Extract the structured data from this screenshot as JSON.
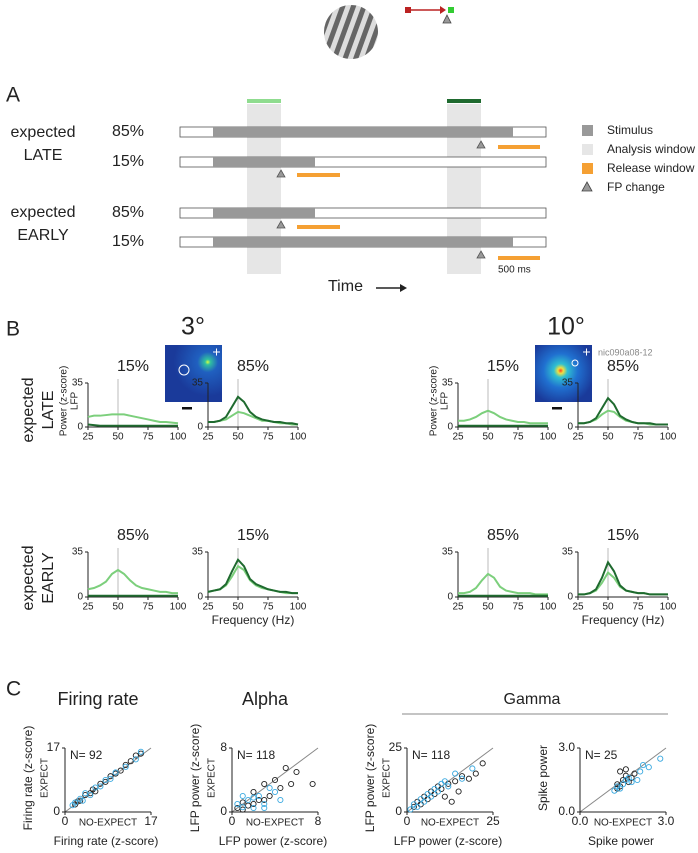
{
  "panel_a": {
    "label": "A",
    "conditions": [
      {
        "group": [
          "expected",
          "LATE"
        ],
        "rows": [
          "85%",
          "15%"
        ]
      },
      {
        "group": [
          "expected",
          "EARLY"
        ],
        "rows": [
          "85%",
          "15%"
        ]
      }
    ],
    "legend": [
      "Stimulus",
      "Analysis window",
      "Release window",
      "FP change"
    ],
    "scale": "500 ms",
    "time": "Time"
  },
  "panel_b": {
    "label": "B",
    "sizes": [
      "3°",
      "10°"
    ],
    "recording": "nic090a08-12",
    "rows": [
      [
        "expected",
        "LATE"
      ],
      [
        "expected",
        "EARLY"
      ]
    ]
  },
  "panel_c": {
    "label": "C",
    "group_title": "Gamma"
  },
  "chart_data": [
    {
      "type": "line",
      "title": "15%",
      "ylabel": "Power (z-score)",
      "ylabel2": "LFP",
      "x": [
        25,
        30,
        35,
        40,
        45,
        50,
        55,
        60,
        65,
        70,
        75,
        80,
        85,
        90,
        95,
        100
      ],
      "xlim": [
        25,
        100
      ],
      "xticks": [
        25,
        50,
        75,
        100
      ],
      "ylim": [
        0,
        35
      ],
      "yticks": [
        0,
        35
      ],
      "vline": 50,
      "series": [
        {
          "color": "#7ccf7c",
          "values": [
            8,
            9,
            9,
            9.5,
            10,
            10,
            10,
            9,
            8,
            7,
            6,
            5,
            4,
            4,
            3.5,
            3
          ]
        },
        {
          "color": "#1f6a2f",
          "values": [
            2,
            1.5,
            1,
            1,
            1,
            1,
            1,
            1,
            1,
            1,
            1,
            1,
            1,
            1,
            1,
            1
          ]
        }
      ]
    },
    {
      "type": "line",
      "title": "85%",
      "x": [
        25,
        30,
        35,
        40,
        45,
        50,
        55,
        60,
        65,
        70,
        75,
        80,
        85,
        90,
        95,
        100
      ],
      "xlim": [
        25,
        100
      ],
      "xticks": [
        25,
        50,
        75,
        100
      ],
      "ylim": [
        0,
        35
      ],
      "yticks": [
        0,
        35
      ],
      "vline": 50,
      "series": [
        {
          "color": "#7ccf7c",
          "values": [
            4,
            4,
            5,
            6,
            9,
            12,
            11,
            9,
            7,
            5,
            5,
            4,
            3,
            3,
            2,
            2
          ]
        },
        {
          "color": "#1f6a2f",
          "values": [
            4,
            4,
            5,
            8,
            16,
            24,
            20,
            12,
            8,
            6,
            5,
            4,
            4,
            3,
            3,
            2
          ]
        }
      ]
    },
    {
      "type": "line",
      "title": "85%",
      "x": [
        25,
        30,
        35,
        40,
        45,
        50,
        55,
        60,
        65,
        70,
        75,
        80,
        85,
        90,
        95,
        100
      ],
      "xlim": [
        25,
        100
      ],
      "xticks": [
        25,
        50,
        75,
        100
      ],
      "ylim": [
        0,
        35
      ],
      "yticks": [
        0,
        35
      ],
      "vline": 50,
      "series": [
        {
          "color": "#7ccf7c",
          "values": [
            6,
            7,
            9,
            12,
            18,
            21,
            18,
            13,
            9,
            7,
            6,
            5,
            4,
            4,
            3,
            3
          ]
        },
        {
          "color": "#1f6a2f",
          "values": [
            1,
            1,
            1,
            1,
            1,
            1,
            1,
            1,
            1,
            1,
            1,
            1,
            1,
            1,
            1,
            1
          ]
        }
      ]
    },
    {
      "type": "line",
      "title": "15%",
      "xlabel": "Frequency (Hz)",
      "x": [
        25,
        30,
        35,
        40,
        45,
        50,
        55,
        60,
        65,
        70,
        75,
        80,
        85,
        90,
        95,
        100
      ],
      "xlim": [
        25,
        100
      ],
      "xticks": [
        25,
        50,
        75,
        100
      ],
      "ylim": [
        0,
        35
      ],
      "yticks": [
        0,
        35
      ],
      "vline": 50,
      "series": [
        {
          "color": "#7ccf7c",
          "values": [
            4,
            5,
            6,
            9,
            16,
            24,
            21,
            13,
            9,
            7,
            6,
            5,
            4,
            3,
            3,
            3
          ]
        },
        {
          "color": "#1f6a2f",
          "values": [
            4,
            5,
            6,
            10,
            20,
            29,
            24,
            14,
            10,
            8,
            6,
            5,
            4,
            4,
            3,
            3
          ]
        }
      ]
    },
    {
      "type": "line",
      "title": "15%",
      "ylabel": "Power (z-score)",
      "ylabel2": "LFP",
      "x": [
        25,
        30,
        35,
        40,
        45,
        50,
        55,
        60,
        65,
        70,
        75,
        80,
        85,
        90,
        95,
        100
      ],
      "xlim": [
        25,
        100
      ],
      "xticks": [
        25,
        50,
        75,
        100
      ],
      "ylim": [
        0,
        35
      ],
      "yticks": [
        0,
        35
      ],
      "vline": 50,
      "series": [
        {
          "color": "#7ccf7c",
          "values": [
            5,
            5,
            6,
            8,
            11,
            13,
            11,
            8,
            6,
            5,
            4,
            4,
            3,
            3,
            3,
            3
          ]
        },
        {
          "color": "#1f6a2f",
          "values": [
            1,
            1,
            1,
            1,
            1,
            1,
            1,
            1,
            1,
            1,
            1,
            1,
            1,
            1,
            1,
            1
          ]
        }
      ]
    },
    {
      "type": "line",
      "title": "85%",
      "x": [
        25,
        30,
        35,
        40,
        45,
        50,
        55,
        60,
        65,
        70,
        75,
        80,
        85,
        90,
        95,
        100
      ],
      "xlim": [
        25,
        100
      ],
      "xticks": [
        25,
        50,
        75,
        100
      ],
      "ylim": [
        0,
        35
      ],
      "yticks": [
        0,
        35
      ],
      "vline": 50,
      "series": [
        {
          "color": "#7ccf7c",
          "values": [
            3,
            3,
            4,
            6,
            10,
            13,
            12,
            8,
            5,
            4,
            3,
            3,
            2,
            2,
            2,
            2
          ]
        },
        {
          "color": "#1f6a2f",
          "values": [
            3,
            3,
            4,
            7,
            15,
            23,
            18,
            9,
            6,
            4,
            3,
            3,
            3,
            2,
            2,
            2
          ]
        }
      ]
    },
    {
      "type": "line",
      "title": "85%",
      "x": [
        25,
        30,
        35,
        40,
        45,
        50,
        55,
        60,
        65,
        70,
        75,
        80,
        85,
        90,
        95,
        100
      ],
      "xlim": [
        25,
        100
      ],
      "xticks": [
        25,
        50,
        75,
        100
      ],
      "ylim": [
        0,
        35
      ],
      "yticks": [
        0,
        35
      ],
      "vline": 50,
      "series": [
        {
          "color": "#7ccf7c",
          "values": [
            3,
            3,
            4,
            7,
            13,
            18,
            15,
            8,
            5,
            4,
            3,
            3,
            3,
            2,
            2,
            2
          ]
        },
        {
          "color": "#1f6a2f",
          "values": [
            1,
            1,
            1,
            1,
            1,
            1,
            1,
            1,
            1,
            1,
            1,
            1,
            1,
            1,
            1,
            1
          ]
        }
      ]
    },
    {
      "type": "line",
      "title": "15%",
      "xlabel": "Frequency (Hz)",
      "x": [
        25,
        30,
        35,
        40,
        45,
        50,
        55,
        60,
        65,
        70,
        75,
        80,
        85,
        90,
        95,
        100
      ],
      "xlim": [
        25,
        100
      ],
      "xticks": [
        25,
        50,
        75,
        100
      ],
      "ylim": [
        0,
        35
      ],
      "yticks": [
        0,
        35
      ],
      "vline": 50,
      "series": [
        {
          "color": "#7ccf7c",
          "values": [
            2,
            2,
            3,
            5,
            11,
            19,
            15,
            8,
            5,
            4,
            3,
            3,
            2,
            2,
            2,
            2
          ]
        },
        {
          "color": "#1f6a2f",
          "values": [
            2,
            2,
            3,
            6,
            15,
            27,
            20,
            9,
            5,
            4,
            3,
            3,
            2,
            2,
            2,
            2
          ]
        }
      ]
    },
    {
      "type": "scatter",
      "title": "Firing rate",
      "ylabel": "Firing rate (z-score)",
      "ylabel_sub": "EXPECT",
      "xlabel": "Firing rate (z-score)",
      "xlabel_sub": "NO-EXPECT",
      "annotation": "N= 92",
      "xlim": [
        0,
        17
      ],
      "xticks": [
        0,
        17
      ],
      "ylim": [
        0,
        17
      ],
      "yticks": [
        0,
        17
      ],
      "series": [
        {
          "color": "#222222",
          "x": [
            2,
            2.5,
            3,
            4,
            5,
            5.5,
            6,
            7,
            8,
            9,
            10,
            11,
            12,
            13,
            14,
            15
          ],
          "values": [
            2,
            2.8,
            3,
            4.5,
            5,
            6,
            5.5,
            7.5,
            8,
            9.5,
            10.2,
            11,
            12.5,
            13.5,
            15,
            15.5
          ]
        },
        {
          "color": "#3aa9e0",
          "x": [
            1.5,
            2,
            3,
            3.5,
            4,
            5,
            6,
            7,
            8,
            9,
            10,
            12,
            14,
            15
          ],
          "values": [
            1.8,
            2.5,
            3.5,
            3,
            5,
            4.5,
            6.5,
            6.8,
            8.5,
            8.8,
            10.5,
            12,
            14,
            16
          ]
        }
      ]
    },
    {
      "type": "scatter",
      "title": "Alpha",
      "ylabel": "LFP power (z-score)",
      "ylabel_sub": "EXPECT",
      "xlabel": "LFP power (z-score)",
      "xlabel_sub": "NO-EXPECT",
      "annotation": "N= 118",
      "xlim": [
        0,
        8
      ],
      "xticks": [
        0,
        8
      ],
      "ylim": [
        0,
        8
      ],
      "yticks": [
        0,
        8
      ],
      "series": [
        {
          "color": "#222222",
          "x": [
            0.5,
            1,
            1.5,
            2,
            2.5,
            3,
            3.5,
            4,
            4.5,
            5,
            5.5,
            6,
            1,
            2,
            3,
            7.5
          ],
          "values": [
            0.5,
            1.2,
            0.8,
            2.5,
            1.5,
            3.5,
            2,
            4,
            3,
            5.5,
            3.5,
            5,
            0.3,
            1,
            1.5,
            3.5
          ]
        },
        {
          "color": "#3aa9e0",
          "x": [
            0.5,
            1,
            1.5,
            2,
            2.5,
            3,
            3.5,
            4,
            4.5,
            1,
            2,
            3
          ],
          "values": [
            1,
            0.6,
            1.5,
            0.5,
            2,
            1,
            3,
            2.5,
            1.5,
            2,
            1.8,
            0.5
          ]
        }
      ]
    },
    {
      "type": "scatter",
      "ylabel": "LFP power  (z-score)",
      "ylabel_sub": "EXPECT",
      "xlabel": "LFP power (z-score)",
      "xlabel_sub": "NO-EXPECT",
      "annotation": "N= 118",
      "xlim": [
        0,
        25
      ],
      "xticks": [
        0,
        25
      ],
      "ylim": [
        0,
        25
      ],
      "yticks": [
        0,
        25
      ],
      "series": [
        {
          "color": "#222222",
          "x": [
            2,
            3,
            4,
            5,
            6,
            7,
            8,
            9,
            10,
            11,
            12,
            14,
            15,
            16,
            18,
            20,
            22,
            13
          ],
          "values": [
            2,
            4,
            3,
            6,
            5,
            8,
            7,
            10,
            9,
            6,
            11,
            12,
            8,
            14,
            13,
            15,
            19,
            4
          ]
        },
        {
          "color": "#3aa9e0",
          "x": [
            1,
            2,
            3,
            4,
            5,
            6,
            7,
            8,
            9,
            10,
            11,
            12,
            14,
            16,
            19
          ],
          "values": [
            1,
            3,
            2,
            5,
            4,
            7,
            6,
            9,
            8,
            11,
            12,
            10,
            15,
            13,
            17
          ]
        }
      ]
    },
    {
      "type": "scatter",
      "ylabel": "Spike power",
      "xlabel": "Spike power",
      "xlabel_sub": "NO-EXPECT",
      "annotation": "N= 25",
      "xlim": [
        0,
        3
      ],
      "xticks": [
        {
          "value": 0,
          "label": "0.0"
        },
        {
          "value": 3,
          "label": "3.0"
        }
      ],
      "ylim": [
        0,
        3
      ],
      "yticks": [
        {
          "value": 0,
          "label": "0.0"
        },
        {
          "value": 3,
          "label": "3.0"
        }
      ],
      "series": [
        {
          "color": "#222222",
          "x": [
            1.3,
            1.4,
            1.5,
            1.6,
            1.8,
            1.4,
            1.6,
            1.7,
            1.3,
            1.9
          ],
          "values": [
            1.3,
            1.2,
            1.5,
            1.7,
            1.6,
            1.9,
            2.0,
            1.4,
            1.1,
            1.8
          ]
        },
        {
          "color": "#3aa9e0",
          "x": [
            1.2,
            1.4,
            1.5,
            1.6,
            1.7,
            1.8,
            2.0,
            2.1,
            2.4,
            2.2,
            1.3,
            2.8
          ],
          "values": [
            1.0,
            1.1,
            1.3,
            1.5,
            1.6,
            1.4,
            1.5,
            1.9,
            2.1,
            2.2,
            1.2,
            2.5
          ]
        }
      ]
    }
  ]
}
